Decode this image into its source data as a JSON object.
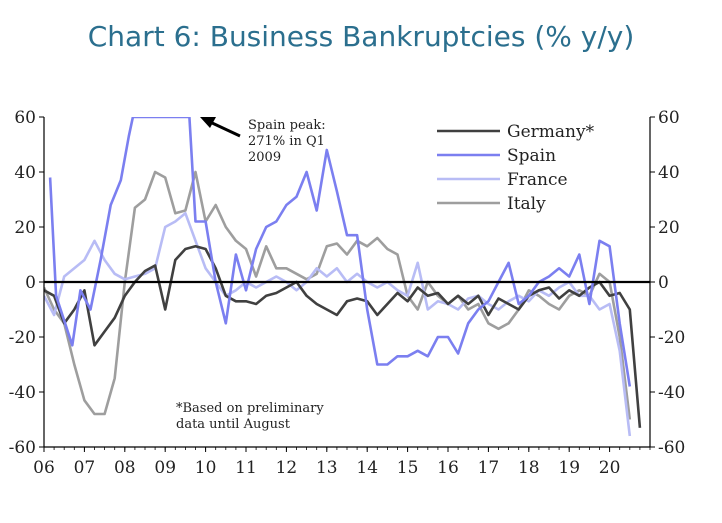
{
  "title": "Chart 6: Business Bankruptcies (% y/y)",
  "chart_data": {
    "type": "line",
    "title": "Chart 6: Business Bankruptcies (% y/y)",
    "xlabel": "",
    "ylabel": "",
    "xlim": [
      2006.0,
      2021.0
    ],
    "ylim": [
      -60,
      60
    ],
    "x_tick_labels": [
      "06",
      "07",
      "08",
      "09",
      "10",
      "11",
      "12",
      "13",
      "14",
      "15",
      "16",
      "17",
      "18",
      "19",
      "20"
    ],
    "y_tick_labels": [
      "60",
      "40",
      "20",
      "0",
      "-20",
      "-40",
      "-60"
    ],
    "y_ticks": [
      60,
      40,
      20,
      0,
      -20,
      -40,
      -60
    ],
    "legend_position": "top-right",
    "grid": false,
    "series": [
      {
        "name": "Germany*",
        "color": "#404040",
        "points": [
          [
            2006.0,
            -3
          ],
          [
            2006.25,
            -5
          ],
          [
            2006.5,
            -15
          ],
          [
            2006.75,
            -10
          ],
          [
            2007.0,
            -3
          ],
          [
            2007.25,
            -23
          ],
          [
            2007.5,
            -18
          ],
          [
            2007.75,
            -13
          ],
          [
            2008.0,
            -5
          ],
          [
            2008.25,
            0
          ],
          [
            2008.5,
            4
          ],
          [
            2008.75,
            6
          ],
          [
            2009.0,
            -10
          ],
          [
            2009.25,
            8
          ],
          [
            2009.5,
            12
          ],
          [
            2009.75,
            13
          ],
          [
            2010.0,
            12
          ],
          [
            2010.25,
            5
          ],
          [
            2010.5,
            -5
          ],
          [
            2010.75,
            -7
          ],
          [
            2011.0,
            -7
          ],
          [
            2011.25,
            -8
          ],
          [
            2011.5,
            -5
          ],
          [
            2011.75,
            -4
          ],
          [
            2012.0,
            -2
          ],
          [
            2012.25,
            0
          ],
          [
            2012.5,
            -5
          ],
          [
            2012.75,
            -8
          ],
          [
            2013.0,
            -10
          ],
          [
            2013.25,
            -12
          ],
          [
            2013.5,
            -7
          ],
          [
            2013.75,
            -6
          ],
          [
            2014.0,
            -7
          ],
          [
            2014.25,
            -12
          ],
          [
            2014.5,
            -8
          ],
          [
            2014.75,
            -4
          ],
          [
            2015.0,
            -7
          ],
          [
            2015.25,
            -2
          ],
          [
            2015.5,
            -5
          ],
          [
            2015.75,
            -4
          ],
          [
            2016.0,
            -8
          ],
          [
            2016.25,
            -5
          ],
          [
            2016.5,
            -8
          ],
          [
            2016.75,
            -5
          ],
          [
            2017.0,
            -12
          ],
          [
            2017.25,
            -6
          ],
          [
            2017.5,
            -8
          ],
          [
            2017.75,
            -10
          ],
          [
            2018.0,
            -5
          ],
          [
            2018.25,
            -3
          ],
          [
            2018.5,
            -2
          ],
          [
            2018.75,
            -6
          ],
          [
            2019.0,
            -3
          ],
          [
            2019.25,
            -5
          ],
          [
            2019.5,
            -2
          ],
          [
            2019.75,
            0
          ],
          [
            2020.0,
            -5
          ],
          [
            2020.25,
            -4
          ],
          [
            2020.5,
            -10
          ],
          [
            2020.75,
            -53
          ]
        ]
      },
      {
        "name": "Spain",
        "color": "#7b7ff0",
        "points": [
          [
            2006.15,
            38
          ],
          [
            2006.3,
            -5
          ],
          [
            2006.7,
            -23
          ],
          [
            2006.9,
            -3
          ],
          [
            2007.15,
            -10
          ],
          [
            2007.4,
            8
          ],
          [
            2007.65,
            28
          ],
          [
            2007.9,
            37
          ],
          [
            2008.1,
            53
          ],
          [
            2008.2,
            60
          ],
          [
            2009.6,
            60
          ],
          [
            2009.75,
            22
          ],
          [
            2010.0,
            22
          ],
          [
            2010.25,
            0
          ],
          [
            2010.5,
            -15
          ],
          [
            2010.75,
            10
          ],
          [
            2011.0,
            -3
          ],
          [
            2011.25,
            12
          ],
          [
            2011.5,
            20
          ],
          [
            2011.75,
            22
          ],
          [
            2012.0,
            28
          ],
          [
            2012.25,
            31
          ],
          [
            2012.5,
            40
          ],
          [
            2012.75,
            26
          ],
          [
            2013.0,
            48
          ],
          [
            2013.25,
            33
          ],
          [
            2013.5,
            17
          ],
          [
            2013.75,
            17
          ],
          [
            2014.0,
            -10
          ],
          [
            2014.25,
            -30
          ],
          [
            2014.5,
            -30
          ],
          [
            2014.75,
            -27
          ],
          [
            2015.0,
            -27
          ],
          [
            2015.25,
            -25
          ],
          [
            2015.5,
            -27
          ],
          [
            2015.75,
            -20
          ],
          [
            2016.0,
            -20
          ],
          [
            2016.25,
            -26
          ],
          [
            2016.5,
            -15
          ],
          [
            2016.75,
            -10
          ],
          [
            2017.0,
            -7
          ],
          [
            2017.25,
            0
          ],
          [
            2017.5,
            7
          ],
          [
            2017.75,
            -8
          ],
          [
            2018.0,
            -5
          ],
          [
            2018.25,
            0
          ],
          [
            2018.5,
            2
          ],
          [
            2018.75,
            5
          ],
          [
            2019.0,
            2
          ],
          [
            2019.25,
            10
          ],
          [
            2019.5,
            -8
          ],
          [
            2019.75,
            15
          ],
          [
            2020.0,
            13
          ],
          [
            2020.25,
            -15
          ],
          [
            2020.5,
            -38
          ]
        ]
      },
      {
        "name": "France",
        "color": "#b8bcf5",
        "points": [
          [
            2006.0,
            -5
          ],
          [
            2006.25,
            -12
          ],
          [
            2006.5,
            2
          ],
          [
            2006.75,
            5
          ],
          [
            2007.0,
            8
          ],
          [
            2007.25,
            15
          ],
          [
            2007.5,
            8
          ],
          [
            2007.75,
            3
          ],
          [
            2008.0,
            1
          ],
          [
            2008.25,
            2
          ],
          [
            2008.5,
            3
          ],
          [
            2008.75,
            5
          ],
          [
            2009.0,
            20
          ],
          [
            2009.25,
            22
          ],
          [
            2009.5,
            25
          ],
          [
            2009.75,
            15
          ],
          [
            2010.0,
            5
          ],
          [
            2010.25,
            0
          ],
          [
            2010.5,
            -5
          ],
          [
            2010.75,
            -3
          ],
          [
            2011.0,
            0
          ],
          [
            2011.25,
            -2
          ],
          [
            2011.5,
            0
          ],
          [
            2011.75,
            2
          ],
          [
            2012.0,
            0
          ],
          [
            2012.25,
            -3
          ],
          [
            2012.5,
            0
          ],
          [
            2012.75,
            5
          ],
          [
            2013.0,
            2
          ],
          [
            2013.25,
            5
          ],
          [
            2013.5,
            0
          ],
          [
            2013.75,
            3
          ],
          [
            2014.0,
            0
          ],
          [
            2014.25,
            -2
          ],
          [
            2014.5,
            0
          ],
          [
            2014.75,
            -3
          ],
          [
            2015.0,
            -5
          ],
          [
            2015.25,
            7
          ],
          [
            2015.5,
            -10
          ],
          [
            2015.75,
            -7
          ],
          [
            2016.0,
            -8
          ],
          [
            2016.25,
            -10
          ],
          [
            2016.5,
            -6
          ],
          [
            2016.75,
            -5
          ],
          [
            2017.0,
            -8
          ],
          [
            2017.25,
            -10
          ],
          [
            2017.5,
            -7
          ],
          [
            2017.75,
            -5
          ],
          [
            2018.0,
            -7
          ],
          [
            2018.25,
            -3
          ],
          [
            2018.5,
            -5
          ],
          [
            2018.75,
            -2
          ],
          [
            2019.0,
            0
          ],
          [
            2019.25,
            -5
          ],
          [
            2019.5,
            -5
          ],
          [
            2019.75,
            -10
          ],
          [
            2020.0,
            -8
          ],
          [
            2020.25,
            -25
          ],
          [
            2020.5,
            -56
          ]
        ]
      },
      {
        "name": "Italy",
        "color": "#9e9e9e",
        "points": [
          [
            2006.0,
            -2
          ],
          [
            2006.25,
            -10
          ],
          [
            2006.5,
            -15
          ],
          [
            2006.75,
            -30
          ],
          [
            2007.0,
            -43
          ],
          [
            2007.25,
            -48
          ],
          [
            2007.5,
            -48
          ],
          [
            2007.75,
            -35
          ],
          [
            2008.0,
            0
          ],
          [
            2008.25,
            27
          ],
          [
            2008.5,
            30
          ],
          [
            2008.75,
            40
          ],
          [
            2009.0,
            38
          ],
          [
            2009.25,
            25
          ],
          [
            2009.5,
            26
          ],
          [
            2009.75,
            40
          ],
          [
            2010.0,
            22
          ],
          [
            2010.25,
            28
          ],
          [
            2010.5,
            20
          ],
          [
            2010.75,
            15
          ],
          [
            2011.0,
            12
          ],
          [
            2011.25,
            2
          ],
          [
            2011.5,
            13
          ],
          [
            2011.75,
            5
          ],
          [
            2012.0,
            5
          ],
          [
            2012.25,
            3
          ],
          [
            2012.5,
            1
          ],
          [
            2012.75,
            3
          ],
          [
            2013.0,
            13
          ],
          [
            2013.25,
            14
          ],
          [
            2013.5,
            10
          ],
          [
            2013.75,
            15
          ],
          [
            2014.0,
            13
          ],
          [
            2014.25,
            16
          ],
          [
            2014.5,
            12
          ],
          [
            2014.75,
            10
          ],
          [
            2015.0,
            -5
          ],
          [
            2015.25,
            -10
          ],
          [
            2015.5,
            0
          ],
          [
            2015.75,
            -5
          ],
          [
            2016.0,
            -8
          ],
          [
            2016.25,
            -5
          ],
          [
            2016.5,
            -10
          ],
          [
            2016.75,
            -8
          ],
          [
            2017.0,
            -15
          ],
          [
            2017.25,
            -17
          ],
          [
            2017.5,
            -15
          ],
          [
            2017.75,
            -10
          ],
          [
            2018.0,
            -3
          ],
          [
            2018.25,
            -5
          ],
          [
            2018.5,
            -8
          ],
          [
            2018.75,
            -10
          ],
          [
            2019.0,
            -5
          ],
          [
            2019.25,
            -3
          ],
          [
            2019.5,
            -5
          ],
          [
            2019.75,
            3
          ],
          [
            2020.0,
            0
          ],
          [
            2020.25,
            -20
          ],
          [
            2020.5,
            -50
          ]
        ]
      }
    ],
    "annotations": [
      {
        "text_lines": [
          "Spain peak:",
          "271% in Q1",
          "2009"
        ]
      },
      {
        "text_lines": [
          "*Based on preliminary",
          "data until August"
        ]
      }
    ]
  }
}
